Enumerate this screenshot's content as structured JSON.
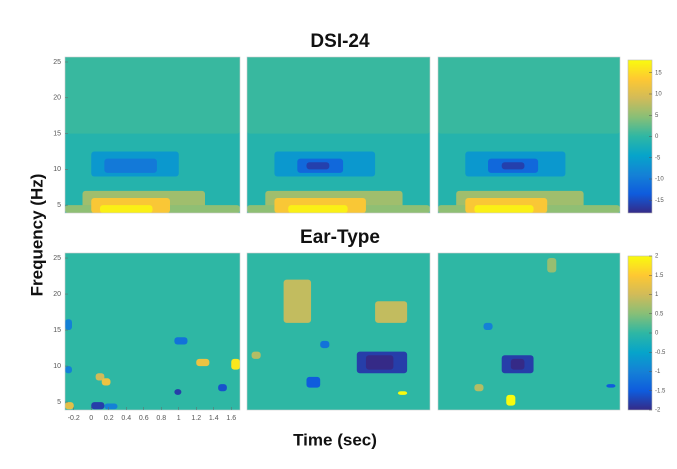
{
  "chart_data": {
    "type": "heatmap",
    "ylabel": "Frequency (Hz)",
    "xlabel": "Time (sec)",
    "xlim": [
      -0.3,
      1.7
    ],
    "ylim": [
      3.9,
      25.7
    ],
    "yticks": [
      5,
      10,
      15,
      20,
      25
    ],
    "xticks": [
      -0.2,
      0,
      0.2,
      0.4,
      0.6,
      0.8,
      1,
      1.2,
      1.4,
      1.6
    ],
    "colormap": [
      "#352a87",
      "#0f5cdd",
      "#1481d6",
      "#06a4ca",
      "#2eb7a4",
      "#87bf77",
      "#d1bb59",
      "#fec832",
      "#f9fb0e"
    ],
    "rows": [
      {
        "title": "DSI-24",
        "clim": [
          -18,
          18
        ],
        "cticks": [
          15,
          10,
          5,
          0,
          -5,
          -10,
          -15
        ],
        "panels": [
          {
            "background": -1,
            "cells": [
              {
                "t": [
                  -0.3,
                  1.7
                ],
                "f": [
                  15,
                  25.7
                ],
                "value": 0.5
              },
              {
                "t": [
                  0.0,
                  1.0
                ],
                "f": [
                  9,
                  12.5
                ],
                "value": -6
              },
              {
                "t": [
                  0.15,
                  0.75
                ],
                "f": [
                  9.5,
                  11.5
                ],
                "value": -10
              },
              {
                "t": [
                  -0.1,
                  1.3
                ],
                "f": [
                  3.9,
                  7
                ],
                "value": 6
              },
              {
                "t": [
                  -0.3,
                  1.7
                ],
                "f": [
                  3.9,
                  5
                ],
                "value": 5
              },
              {
                "t": [
                  0.0,
                  0.9
                ],
                "f": [
                  3.9,
                  6
                ],
                "value": 13
              },
              {
                "t": [
                  0.1,
                  0.7
                ],
                "f": [
                  3.9,
                  5
                ],
                "value": 17
              }
            ]
          },
          {
            "background": -1,
            "cells": [
              {
                "t": [
                  -0.3,
                  1.7
                ],
                "f": [
                  15,
                  25.7
                ],
                "value": 0.5
              },
              {
                "t": [
                  0.0,
                  1.1
                ],
                "f": [
                  9,
                  12.5
                ],
                "value": -6
              },
              {
                "t": [
                  0.25,
                  0.75
                ],
                "f": [
                  9.5,
                  11.5
                ],
                "value": -12
              },
              {
                "t": [
                  0.35,
                  0.6
                ],
                "f": [
                  10,
                  11
                ],
                "value": -16
              },
              {
                "t": [
                  -0.1,
                  1.4
                ],
                "f": [
                  3.9,
                  7
                ],
                "value": 6
              },
              {
                "t": [
                  -0.3,
                  1.7
                ],
                "f": [
                  3.9,
                  5
                ],
                "value": 5
              },
              {
                "t": [
                  0.0,
                  1.0
                ],
                "f": [
                  3.9,
                  6
                ],
                "value": 13
              },
              {
                "t": [
                  0.15,
                  0.8
                ],
                "f": [
                  3.9,
                  5
                ],
                "value": 17
              }
            ]
          },
          {
            "background": -1,
            "cells": [
              {
                "t": [
                  -0.3,
                  1.7
                ],
                "f": [
                  15,
                  25.7
                ],
                "value": 0.5
              },
              {
                "t": [
                  0.0,
                  1.1
                ],
                "f": [
                  9,
                  12.5
                ],
                "value": -6
              },
              {
                "t": [
                  0.25,
                  0.8
                ],
                "f": [
                  9.5,
                  11.5
                ],
                "value": -12
              },
              {
                "t": [
                  0.4,
                  0.65
                ],
                "f": [
                  10,
                  11
                ],
                "value": -16
              },
              {
                "t": [
                  -0.1,
                  1.3
                ],
                "f": [
                  3.9,
                  7
                ],
                "value": 6
              },
              {
                "t": [
                  -0.3,
                  1.7
                ],
                "f": [
                  3.9,
                  5
                ],
                "value": 5
              },
              {
                "t": [
                  0.0,
                  0.9
                ],
                "f": [
                  3.9,
                  6
                ],
                "value": 13
              },
              {
                "t": [
                  0.1,
                  0.75
                ],
                "f": [
                  3.9,
                  5
                ],
                "value": 17
              }
            ]
          }
        ]
      },
      {
        "title": "Ear-Type",
        "clim": [
          -2,
          2
        ],
        "cticks": [
          2,
          1.5,
          1,
          0.5,
          0,
          -0.5,
          -1,
          -1.5,
          -2
        ],
        "panels": [
          {
            "background": 0,
            "cells": [
              {
                "t": [
                  -0.3,
                  -0.22
                ],
                "f": [
                  15,
                  16.5
                ],
                "value": -1
              },
              {
                "t": [
                  -0.3,
                  -0.22
                ],
                "f": [
                  9,
                  10
                ],
                "value": -1
              },
              {
                "t": [
                  0.05,
                  0.15
                ],
                "f": [
                  8,
                  9
                ],
                "value": 1
              },
              {
                "t": [
                  0.12,
                  0.22
                ],
                "f": [
                  7.3,
                  8.3
                ],
                "value": 1.3
              },
              {
                "t": [
                  0.0,
                  0.15
                ],
                "f": [
                  4,
                  5
                ],
                "value": -1.8
              },
              {
                "t": [
                  0.15,
                  0.3
                ],
                "f": [
                  4,
                  4.8
                ],
                "value": -1
              },
              {
                "t": [
                  -0.3,
                  -0.2
                ],
                "f": [
                  4,
                  5
                ],
                "value": 1.2
              },
              {
                "t": [
                  0.95,
                  1.1
                ],
                "f": [
                  13,
                  14
                ],
                "value": -1.2
              },
              {
                "t": [
                  1.2,
                  1.35
                ],
                "f": [
                  10,
                  11
                ],
                "value": 1.3
              },
              {
                "t": [
                  1.6,
                  1.7
                ],
                "f": [
                  9.5,
                  11
                ],
                "value": 1.8
              },
              {
                "t": [
                  1.45,
                  1.55
                ],
                "f": [
                  6.5,
                  7.5
                ],
                "value": -1.6
              },
              {
                "t": [
                  0.95,
                  1.03
                ],
                "f": [
                  6,
                  6.8
                ],
                "value": -1.8
              }
            ]
          },
          {
            "background": 0,
            "cells": [
              {
                "t": [
                  0.1,
                  0.4
                ],
                "f": [
                  16,
                  22
                ],
                "value": 0.9
              },
              {
                "t": [
                  1.1,
                  1.45
                ],
                "f": [
                  16,
                  19
                ],
                "value": 0.9
              },
              {
                "t": [
                  0.9,
                  1.45
                ],
                "f": [
                  9,
                  12
                ],
                "value": -1.8
              },
              {
                "t": [
                  1.0,
                  1.3
                ],
                "f": [
                  9.5,
                  11.5
                ],
                "value": -2
              },
              {
                "t": [
                  0.35,
                  0.5
                ],
                "f": [
                  7,
                  8.5
                ],
                "value": -1.5
              },
              {
                "t": [
                  0.5,
                  0.6
                ],
                "f": [
                  12.5,
                  13.5
                ],
                "value": -1.2
              },
              {
                "t": [
                  -0.25,
                  -0.15
                ],
                "f": [
                  11,
                  12
                ],
                "value": 0.8
              },
              {
                "t": [
                  1.35,
                  1.45
                ],
                "f": [
                  6,
                  6.5
                ],
                "value": 2
              }
            ]
          },
          {
            "background": 0,
            "cells": [
              {
                "t": [
                  0.4,
                  0.75
                ],
                "f": [
                  9,
                  11.5
                ],
                "value": -1.8
              },
              {
                "t": [
                  0.5,
                  0.65
                ],
                "f": [
                  9.5,
                  11
                ],
                "value": -2
              },
              {
                "t": [
                  0.45,
                  0.55
                ],
                "f": [
                  4.5,
                  6
                ],
                "value": 2
              },
              {
                "t": [
                  0.2,
                  0.3
                ],
                "f": [
                  15,
                  16
                ],
                "value": -1
              },
              {
                "t": [
                  0.9,
                  1.0
                ],
                "f": [
                  23,
                  25
                ],
                "value": 0.6
              },
              {
                "t": [
                  1.55,
                  1.65
                ],
                "f": [
                  7,
                  7.5
                ],
                "value": -1.5
              },
              {
                "t": [
                  0.1,
                  0.2
                ],
                "f": [
                  6.5,
                  7.5
                ],
                "value": 0.8
              }
            ]
          }
        ]
      }
    ]
  }
}
